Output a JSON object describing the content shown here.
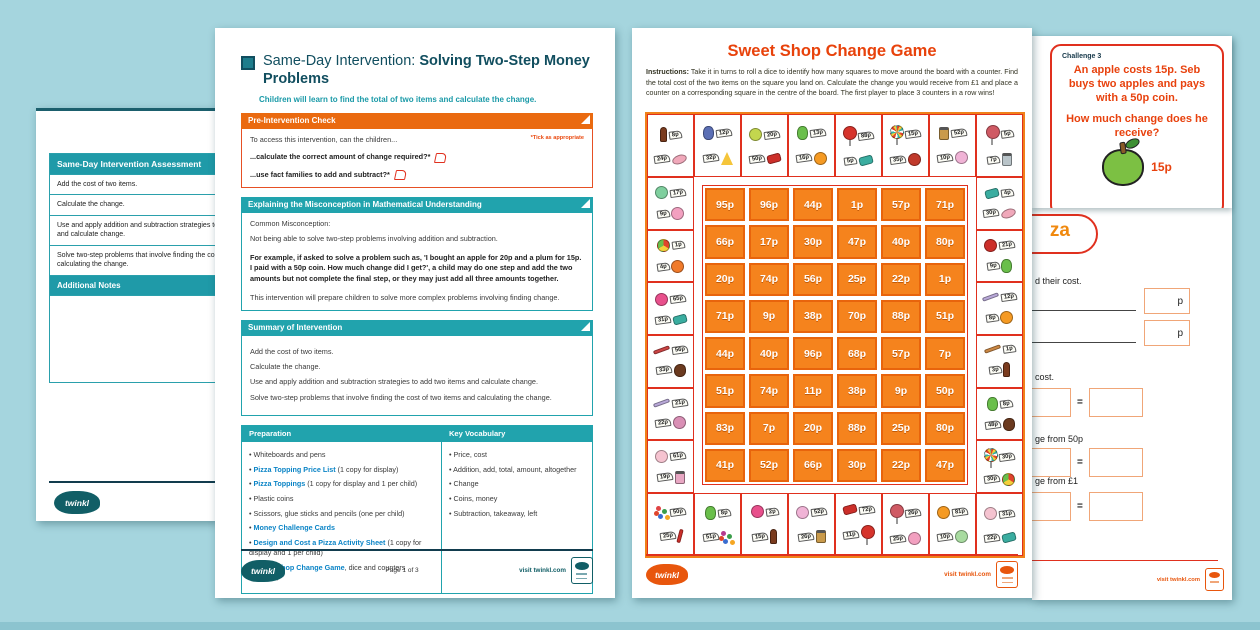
{
  "colors": {
    "background": "#a5d5de",
    "teal_header": "#21a3ad",
    "orange_header": "#ea6a10",
    "red_accent": "#e0301e",
    "game_orange": "#f5831d",
    "link_blue": "#0b84c6",
    "dark_teal_text": "#114e5f",
    "game_title_red": "#e8420b"
  },
  "assessment_page": {
    "header": "Same-Day Intervention Assessment",
    "rows": [
      "Add the cost of two items.",
      "Calculate the change.",
      "Use and apply addition and subtraction strategies to add two items and calculate change.",
      "Solve two-step problems that involve finding the cost of two items and calculating the change."
    ],
    "notes_header": "Additional Notes",
    "logo": "twinkl"
  },
  "intervention_page": {
    "title_prefix": "Same-Day Intervention: ",
    "title_bold": "Solving Two-Step Money Problems",
    "subtitle": "Children will learn to find the total of two items and calculate the change.",
    "pre_check": {
      "header": "Pre-Intervention Check",
      "tick_note": "*Tick as appropriate",
      "intro": "To access this intervention, can the children...",
      "questions": [
        "...calculate the correct amount of change required?*",
        "...use fact families to add and subtract?*"
      ]
    },
    "misconception": {
      "header": "Explaining the Misconception in Mathematical Understanding",
      "label": "Common Misconception:",
      "text": "Not being able to solve two-step problems involving addition and subtraction.",
      "example": "For example, if asked to solve a problem such as, 'I bought an apple for 20p and a plum for 15p. I paid with a 50p coin. How much change did I get?', a child may do one step and add the two amounts but not complete the final step, or they may just add all three amounts together.",
      "closing": "This intervention will prepare children to solve more complex problems involving finding change."
    },
    "summary": {
      "header": "Summary of Intervention",
      "lines": [
        "Add the cost of two items.",
        "Calculate the change.",
        "Use and apply addition and subtraction strategies to add two items and calculate change.",
        "Solve two-step problems that involve finding the cost of two items and calculating the change."
      ]
    },
    "prep_table": {
      "col1_header": "Preparation",
      "col2_header": "Key Vocabulary",
      "preparation": [
        [
          {
            "t": "Whiteboards and pens"
          }
        ],
        [
          {
            "t": "Pizza Topping Price List",
            "link": true
          },
          {
            "t": " (1 copy for display)"
          }
        ],
        [
          {
            "t": "Pizza Toppings",
            "link": true
          },
          {
            "t": " (1 copy for display and 1 per child)"
          }
        ],
        [
          {
            "t": "Plastic coins"
          }
        ],
        [
          {
            "t": "Scissors, glue sticks and pencils (one per child)"
          }
        ],
        [
          {
            "t": "Money Challenge Cards",
            "link": true
          }
        ],
        [
          {
            "t": "Design and Cost a Pizza Activity Sheet",
            "link": true
          },
          {
            "t": " (1 copy for display and 1 per child)"
          }
        ],
        [
          {
            "t": "Sweet Shop Change Game",
            "link": true
          },
          {
            "t": ", dice and counters (optional)"
          }
        ]
      ],
      "vocabulary": [
        "Price, cost",
        "Addition, add, total, amount, altogether",
        "Change",
        "Coins, money",
        "Subtraction, takeaway, left"
      ]
    },
    "footer": {
      "logo": "twinkl",
      "page": "Page 1 of 3",
      "visit": "visit twinkl.com"
    }
  },
  "game_page": {
    "title": "Sweet Shop Change Game",
    "instructions_label": "Instructions:",
    "instructions": "Take it in turns to roll a dice to identify how many squares to move around the board with a counter. Find the total cost of the two items on the square you land on. Calculate the change you would receive from £1 and place a counter on a corresponding square in the centre of the board. The first player to place 3 counters in a row wins!",
    "grid": [
      "95p",
      "96p",
      "44p",
      "1p",
      "57p",
      "71p",
      "66p",
      "17p",
      "30p",
      "47p",
      "40p",
      "80p",
      "20p",
      "74p",
      "56p",
      "25p",
      "22p",
      "1p",
      "71p",
      "9p",
      "38p",
      "70p",
      "88p",
      "51p",
      "44p",
      "40p",
      "96p",
      "68p",
      "57p",
      "7p",
      "51p",
      "74p",
      "11p",
      "38p",
      "9p",
      "50p",
      "83p",
      "7p",
      "20p",
      "88p",
      "25p",
      "80p",
      "41p",
      "52p",
      "66p",
      "30p",
      "22p",
      "47p"
    ],
    "border_cells": {
      "top": [
        {
          "items": [
            {
              "p": "8p",
              "name": "cola-bottle",
              "shape": "bottle",
              "c": "#7a3b1e"
            },
            {
              "p": "24p",
              "name": "jelly-bean",
              "shape": "ellipse",
              "c": "#f0a8ba"
            }
          ]
        },
        {
          "items": [
            {
              "p": "12p",
              "name": "gummy-bear",
              "shape": "bear",
              "c": "#5b6fb5"
            },
            {
              "p": "32p",
              "name": "candy-corn",
              "shape": "tri",
              "c": "#f5c53a"
            }
          ]
        },
        {
          "items": [
            {
              "p": "20p",
              "name": "boiled-sweet",
              "shape": "circle",
              "c": "#c3d64e"
            },
            {
              "p": "50p",
              "name": "wrapped-candy",
              "shape": "wrap",
              "c": "#cc2f2a"
            }
          ]
        },
        {
          "items": [
            {
              "p": "13p",
              "name": "gummy-bear",
              "shape": "bear",
              "c": "#6abf4b"
            },
            {
              "p": "16p",
              "name": "boiled-sweet",
              "shape": "circle",
              "c": "#f59a23"
            }
          ]
        },
        {
          "items": [
            {
              "p": "88p",
              "name": "lollipop",
              "shape": "lolly",
              "c": "#d6342c"
            },
            {
              "p": "5p",
              "name": "wrapped-candy",
              "shape": "wrap",
              "c": "#3aada0"
            }
          ]
        },
        {
          "items": [
            {
              "p": "15p",
              "name": "swirl-lollipop",
              "shape": "lolly",
              "c": "swirl"
            },
            {
              "p": "35p",
              "name": "boiled-sweet",
              "shape": "circle",
              "c": "#c0392b"
            }
          ]
        },
        {
          "items": [
            {
              "p": "52p",
              "name": "sweet-jar",
              "shape": "jar",
              "c": "#c99a4b"
            },
            {
              "p": "10p",
              "name": "candy-floss",
              "shape": "circle",
              "c": "#f0b3d6"
            }
          ]
        },
        {
          "items": [
            {
              "p": "5p",
              "name": "lollipop",
              "shape": "lolly",
              "c": "#cf5a64"
            },
            {
              "p": "7p",
              "name": "sweet-jar",
              "shape": "jar",
              "c": "#b9c4c9"
            }
          ]
        }
      ],
      "left": [
        {
          "items": [
            {
              "p": "17p",
              "name": "boiled-sweet",
              "shape": "circle",
              "c": "#7fcf9e"
            },
            {
              "p": "9p",
              "name": "bonbon",
              "shape": "circle",
              "c": "#f2a0c0"
            }
          ]
        },
        {
          "items": [
            {
              "p": "1p",
              "name": "gobstopper",
              "shape": "ball",
              "c": "ball"
            },
            {
              "p": "4p",
              "name": "boiled-sweet",
              "shape": "circle",
              "c": "#f07a2a"
            }
          ]
        },
        {
          "items": [
            {
              "p": "65p",
              "name": "boiled-sweet",
              "shape": "circle",
              "c": "#e8508c"
            },
            {
              "p": "31p",
              "name": "wrapped-candy",
              "shape": "wrap",
              "c": "#3aada0"
            }
          ]
        },
        {
          "items": [
            {
              "p": "56p",
              "name": "liquorice",
              "shape": "stick",
              "c": "#cc4444"
            },
            {
              "p": "33p",
              "name": "chocolate-bunny",
              "shape": "choco",
              "c": "#6b3a1f"
            }
          ]
        },
        {
          "items": [
            {
              "p": "21p",
              "name": "rock-candy",
              "shape": "stick",
              "c": "#b8a8d8"
            },
            {
              "p": "22p",
              "name": "sweets",
              "shape": "circle",
              "c": "#d98fb5"
            }
          ]
        },
        {
          "items": [
            {
              "p": "61p",
              "name": "candy-hearts",
              "shape": "circle",
              "c": "#f5c3d0"
            },
            {
              "p": "19p",
              "name": "sweet-jar",
              "shape": "jar",
              "c": "#e8a7c3"
            }
          ]
        }
      ],
      "right": [
        {
          "items": [
            {
              "p": "4p",
              "name": "wrapped-candy",
              "shape": "wrap",
              "c": "#3aada0"
            },
            {
              "p": "30p",
              "name": "jelly-bean",
              "shape": "ellipse",
              "c": "#f0a8ba"
            }
          ]
        },
        {
          "items": [
            {
              "p": "21p",
              "name": "boiled-sweet",
              "shape": "circle",
              "c": "#cc2f2a"
            },
            {
              "p": "9p",
              "name": "gummy-bear",
              "shape": "bear",
              "c": "#6abf4b"
            }
          ]
        },
        {
          "items": [
            {
              "p": "12p",
              "name": "rock-candy",
              "shape": "stick",
              "c": "#b8a8d8"
            },
            {
              "p": "8p",
              "name": "boiled-sweet",
              "shape": "circle",
              "c": "#f59a23"
            }
          ]
        },
        {
          "items": [
            {
              "p": "1p",
              "name": "liquorice",
              "shape": "stick",
              "c": "#cc8844"
            },
            {
              "p": "3p",
              "name": "cola-bottle",
              "shape": "bottle",
              "c": "#7a3b1e"
            }
          ]
        },
        {
          "items": [
            {
              "p": "8p",
              "name": "gummy-bear",
              "shape": "bear",
              "c": "#6abf4b"
            },
            {
              "p": "48p",
              "name": "chocolate-bunny",
              "shape": "choco",
              "c": "#6b3a1f"
            }
          ]
        },
        {
          "items": [
            {
              "p": "30p",
              "name": "swirl-lollipop",
              "shape": "lolly",
              "c": "swirl"
            },
            {
              "p": "30p",
              "name": "gobstopper",
              "shape": "ball",
              "c": "ball"
            }
          ]
        }
      ],
      "bottom": [
        {
          "items": [
            {
              "p": "50p",
              "name": "sprinkles",
              "shape": "dots",
              "c": "#e04444"
            },
            {
              "p": "25p",
              "name": "candy-cane",
              "shape": "cane",
              "c": "#cc2f2a"
            }
          ]
        },
        {
          "items": [
            {
              "p": "8p",
              "name": "gummy-bear",
              "shape": "bear",
              "c": "#6abf4b"
            },
            {
              "p": "51p",
              "name": "gumballs",
              "shape": "dots",
              "c": "#b53b8f"
            }
          ]
        },
        {
          "items": [
            {
              "p": "2p",
              "name": "boiled-sweet",
              "shape": "circle",
              "c": "#e8508c"
            },
            {
              "p": "15p",
              "name": "cola-bottle",
              "shape": "bottle",
              "c": "#7a3b1e"
            }
          ]
        },
        {
          "items": [
            {
              "p": "52p",
              "name": "candy-floss",
              "shape": "circle",
              "c": "#f0b3d6"
            },
            {
              "p": "26p",
              "name": "sweet-jar",
              "shape": "jar",
              "c": "#c99a4b"
            }
          ]
        },
        {
          "items": [
            {
              "p": "72p",
              "name": "wrapped-candy",
              "shape": "wrap",
              "c": "#cc2f2a"
            },
            {
              "p": "11p",
              "name": "lollipop",
              "shape": "lolly",
              "c": "#d6342c"
            }
          ]
        },
        {
          "items": [
            {
              "p": "26p",
              "name": "lollipop",
              "shape": "lolly",
              "c": "#cf5a64"
            },
            {
              "p": "25p",
              "name": "bonbon",
              "shape": "circle",
              "c": "#f2a0c0"
            }
          ]
        },
        {
          "items": [
            {
              "p": "81p",
              "name": "boiled-sweet",
              "shape": "circle",
              "c": "#f59a23"
            },
            {
              "p": "10p",
              "name": "boiled-sweet",
              "shape": "circle",
              "c": "#a8dba0"
            }
          ]
        },
        {
          "items": [
            {
              "p": "31p",
              "name": "candy-hearts",
              "shape": "circle",
              "c": "#f5c3d0"
            },
            {
              "p": "22p",
              "name": "wrapped-candy",
              "shape": "wrap",
              "c": "#3aada0"
            }
          ]
        }
      ]
    },
    "footer": {
      "logo": "twinkl",
      "visit": "visit twinkl.com"
    }
  },
  "challenge_card": {
    "label": "Challenge 3",
    "line1": "An apple costs 15p. Seb buys two apples and pays with a 50p coin.",
    "line2": "How much change does he receive?",
    "price": "15p"
  },
  "pizza_page": {
    "title_fragment": "za",
    "label1": "d their cost.",
    "unit": "p",
    "label2": "cost.",
    "equals": "=",
    "label3": "ge from 50p",
    "label4": "ge from £1",
    "footer_visit": "visit twinkl.com"
  }
}
